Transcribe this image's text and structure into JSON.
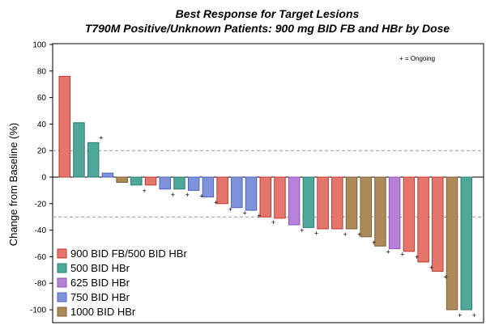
{
  "chart_data": {
    "type": "bar",
    "title": "Best Response for Target Lesions",
    "subtitle": "T790M Positive/Unknown Patients: 900 mg BID FB and HBr by Dose",
    "xlabel": "",
    "ylabel": "Change from Baseline (%)",
    "ylim": [
      -100,
      100
    ],
    "yticks": [
      100,
      80,
      60,
      40,
      20,
      0,
      -20,
      -40,
      -60,
      -80,
      -100
    ],
    "reference_lines": [
      20,
      -30
    ],
    "ongoing_note": "+ = Ongoing",
    "ongoing_symbol": "+",
    "series": [
      {
        "name": "900 BID FB/500 BID HBr",
        "color": "#e5766e",
        "edge": "#c0392b"
      },
      {
        "name": "500 BID HBr",
        "color": "#4fa79a",
        "edge": "#2e7f73"
      },
      {
        "name": "625 BID HBr",
        "color": "#b781d8",
        "edge": "#8f57b3"
      },
      {
        "name": "750 BID HBr",
        "color": "#7f93dd",
        "edge": "#4f63b8"
      },
      {
        "name": "1000 BID HBr",
        "color": "#ad8a5a",
        "edge": "#7f6238"
      }
    ],
    "bars": [
      {
        "value": 76,
        "series": 0,
        "ongoing": false
      },
      {
        "value": 41,
        "series": 1,
        "ongoing": false
      },
      {
        "value": 26,
        "series": 1,
        "ongoing": true
      },
      {
        "value": 3,
        "series": 3,
        "ongoing": false
      },
      {
        "value": -4,
        "series": 4,
        "ongoing": false
      },
      {
        "value": -6,
        "series": 1,
        "ongoing": true
      },
      {
        "value": -6,
        "series": 0,
        "ongoing": false
      },
      {
        "value": -9,
        "series": 3,
        "ongoing": true
      },
      {
        "value": -9,
        "series": 1,
        "ongoing": true
      },
      {
        "value": -10,
        "series": 3,
        "ongoing": true
      },
      {
        "value": -15,
        "series": 3,
        "ongoing": true
      },
      {
        "value": -20,
        "series": 0,
        "ongoing": true
      },
      {
        "value": -23,
        "series": 3,
        "ongoing": true
      },
      {
        "value": -25,
        "series": 3,
        "ongoing": true
      },
      {
        "value": -30,
        "series": 0,
        "ongoing": true
      },
      {
        "value": -31,
        "series": 0,
        "ongoing": false
      },
      {
        "value": -36,
        "series": 2,
        "ongoing": true
      },
      {
        "value": -38,
        "series": 1,
        "ongoing": true
      },
      {
        "value": -39,
        "series": 0,
        "ongoing": false
      },
      {
        "value": -39,
        "series": 0,
        "ongoing": true
      },
      {
        "value": -39,
        "series": 4,
        "ongoing": true
      },
      {
        "value": -45,
        "series": 4,
        "ongoing": true
      },
      {
        "value": -52,
        "series": 4,
        "ongoing": true
      },
      {
        "value": -54,
        "series": 2,
        "ongoing": true
      },
      {
        "value": -56,
        "series": 0,
        "ongoing": true
      },
      {
        "value": -64,
        "series": 0,
        "ongoing": true
      },
      {
        "value": -71,
        "series": 0,
        "ongoing": true
      },
      {
        "value": -100,
        "series": 4,
        "ongoing": true
      },
      {
        "value": -100,
        "series": 1,
        "ongoing": true
      }
    ]
  }
}
